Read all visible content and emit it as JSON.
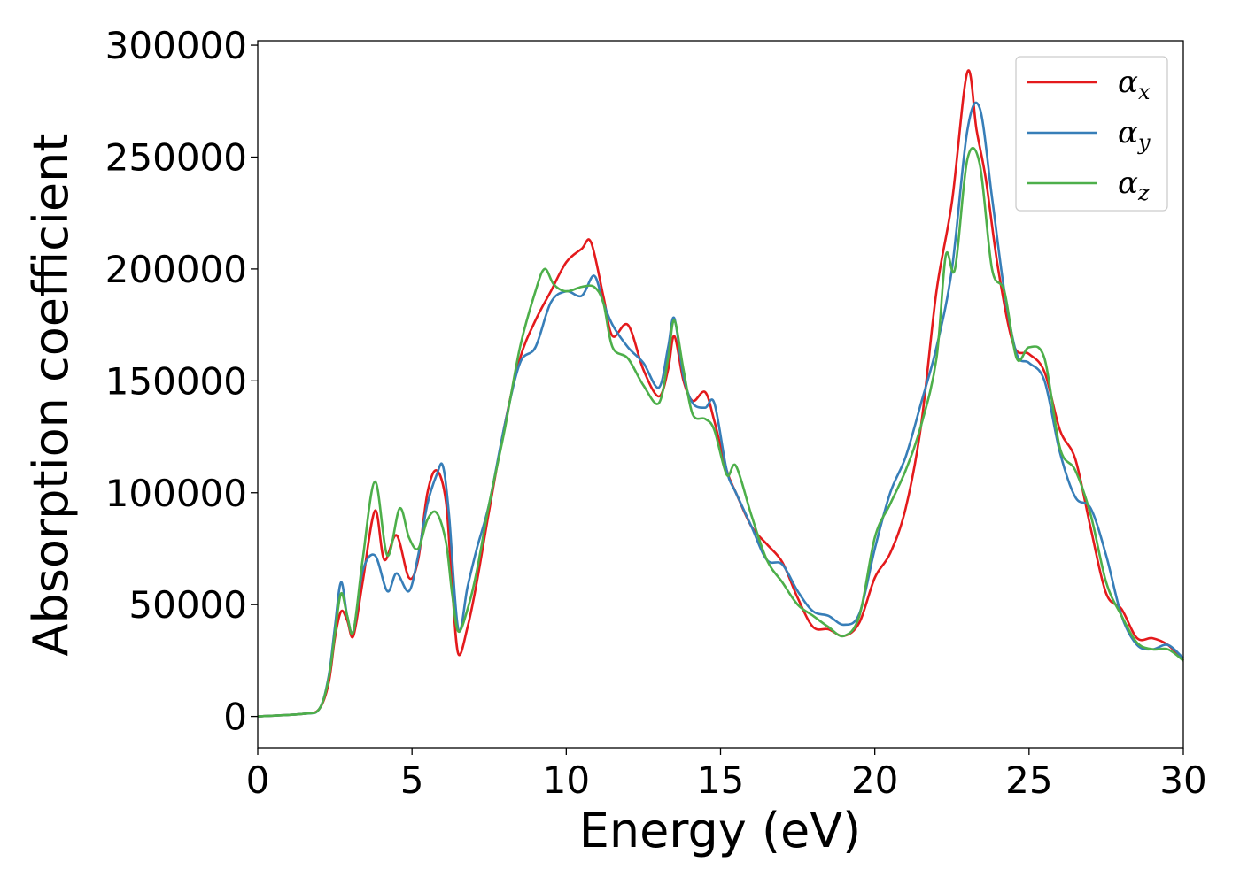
{
  "chart_data": {
    "type": "line",
    "title": "",
    "xlabel": "Energy (eV)",
    "ylabel": "Absorption coefficient",
    "xlim": [
      0,
      30
    ],
    "ylim": [
      -14000,
      302000
    ],
    "xticks": [
      0,
      5,
      10,
      15,
      20,
      25,
      30
    ],
    "xtick_labels": [
      "0",
      "5",
      "10",
      "15",
      "20",
      "25",
      "30"
    ],
    "yticks": [
      0,
      50000,
      100000,
      150000,
      200000,
      250000,
      300000
    ],
    "ytick_labels": [
      "0",
      "50000",
      "100000",
      "150000",
      "200000",
      "250000",
      "300000"
    ],
    "grid": false,
    "legend_position": "upper right",
    "series": [
      {
        "name": "α_x",
        "color": "#e41a1c",
        "x": [
          0,
          1.5,
          2.0,
          2.3,
          2.5,
          2.7,
          2.9,
          3.1,
          3.4,
          3.8,
          4.1,
          4.5,
          4.9,
          5.2,
          5.5,
          5.8,
          6.1,
          6.3,
          6.5,
          6.8,
          7.1,
          7.5,
          8.0,
          8.5,
          9.0,
          9.5,
          10.0,
          10.5,
          10.8,
          11.2,
          11.5,
          12.0,
          12.5,
          13.0,
          13.3,
          13.5,
          13.8,
          14.1,
          14.5,
          14.8,
          15.2,
          15.5,
          16.0,
          16.5,
          17.0,
          17.5,
          18.0,
          18.5,
          19.0,
          19.5,
          20.0,
          20.5,
          21.0,
          21.5,
          22.0,
          22.5,
          23.0,
          23.3,
          23.6,
          24.0,
          24.5,
          25.0,
          25.5,
          26.0,
          26.5,
          27.0,
          27.5,
          28.0,
          28.5,
          29.0,
          29.5,
          30.0
        ],
        "y": [
          0,
          1200,
          3500,
          15000,
          35000,
          47000,
          43000,
          36000,
          60000,
          92000,
          70000,
          81000,
          62000,
          70000,
          100000,
          110000,
          96000,
          58000,
          28000,
          40000,
          60000,
          92000,
          130000,
          160000,
          177000,
          190000,
          203000,
          209000,
          212000,
          188000,
          170000,
          175000,
          155000,
          143000,
          155000,
          170000,
          150000,
          141000,
          145000,
          132000,
          110000,
          100000,
          85000,
          77000,
          69000,
          53000,
          40000,
          39000,
          36000,
          42000,
          62000,
          73000,
          93000,
          130000,
          190000,
          230000,
          288000,
          262000,
          240000,
          200000,
          166000,
          162000,
          154000,
          128000,
          115000,
          84000,
          55000,
          48000,
          35000,
          35000,
          32000,
          25000
        ]
      },
      {
        "name": "α_y",
        "color": "#377eb8",
        "x": [
          0,
          1.5,
          2.0,
          2.3,
          2.5,
          2.7,
          2.9,
          3.1,
          3.4,
          3.8,
          4.2,
          4.5,
          4.9,
          5.2,
          5.5,
          5.8,
          6.0,
          6.2,
          6.5,
          6.8,
          7.1,
          7.5,
          8.0,
          8.5,
          9.0,
          9.5,
          10.0,
          10.5,
          10.9,
          11.2,
          11.5,
          12.0,
          12.5,
          13.0,
          13.3,
          13.5,
          13.8,
          14.1,
          14.5,
          14.8,
          15.2,
          15.5,
          16.0,
          16.5,
          17.0,
          17.5,
          18.0,
          18.5,
          19.0,
          19.5,
          20.0,
          20.5,
          21.0,
          21.5,
          22.0,
          22.5,
          23.0,
          23.4,
          23.8,
          24.2,
          24.6,
          25.0,
          25.5,
          26.0,
          26.5,
          27.0,
          27.5,
          28.0,
          28.5,
          29.0,
          29.5,
          30.0
        ],
        "y": [
          0,
          1200,
          3500,
          18000,
          40000,
          60000,
          45000,
          38000,
          65000,
          72000,
          56000,
          64000,
          56000,
          72000,
          95000,
          108000,
          112000,
          90000,
          39000,
          58000,
          75000,
          95000,
          130000,
          158000,
          165000,
          185000,
          190000,
          188000,
          197000,
          185000,
          175000,
          165000,
          158000,
          147000,
          165000,
          178000,
          152000,
          140000,
          138000,
          140000,
          110000,
          100000,
          85000,
          70000,
          68000,
          56000,
          47000,
          45000,
          41000,
          46000,
          75000,
          100000,
          116000,
          140000,
          165000,
          200000,
          262000,
          272000,
          232000,
          190000,
          162000,
          158000,
          150000,
          118000,
          98000,
          93000,
          72000,
          45000,
          32000,
          30000,
          32000,
          26000
        ]
      },
      {
        "name": "α_z",
        "color": "#4daf4a",
        "x": [
          0,
          1.5,
          2.0,
          2.3,
          2.5,
          2.7,
          2.9,
          3.1,
          3.4,
          3.8,
          4.2,
          4.6,
          4.9,
          5.2,
          5.5,
          5.8,
          6.1,
          6.3,
          6.5,
          6.8,
          7.1,
          7.5,
          8.0,
          8.5,
          9.0,
          9.3,
          9.6,
          10.0,
          10.5,
          10.9,
          11.2,
          11.5,
          12.0,
          12.5,
          13.0,
          13.3,
          13.5,
          13.8,
          14.1,
          14.5,
          14.8,
          15.2,
          15.5,
          16.0,
          16.5,
          17.0,
          17.5,
          18.0,
          18.5,
          19.0,
          19.5,
          20.0,
          20.5,
          21.0,
          21.5,
          22.0,
          22.3,
          22.6,
          23.0,
          23.4,
          23.8,
          24.2,
          24.6,
          25.0,
          25.5,
          26.0,
          26.5,
          27.0,
          27.5,
          28.0,
          28.5,
          29.0,
          29.5,
          30.0
        ],
        "y": [
          0,
          1200,
          3500,
          17000,
          37000,
          55000,
          45000,
          38000,
          70000,
          105000,
          72000,
          93000,
          80000,
          75000,
          88000,
          91000,
          78000,
          55000,
          38000,
          48000,
          65000,
          95000,
          128000,
          165000,
          190000,
          200000,
          193000,
          190000,
          192000,
          192000,
          185000,
          165000,
          160000,
          148000,
          140000,
          160000,
          177000,
          155000,
          135000,
          133000,
          128000,
          108000,
          112000,
          90000,
          70000,
          60000,
          50000,
          45000,
          40000,
          36000,
          45000,
          80000,
          95000,
          110000,
          130000,
          160000,
          206000,
          200000,
          249000,
          247000,
          200000,
          190000,
          160000,
          165000,
          160000,
          120000,
          110000,
          90000,
          60000,
          45000,
          33000,
          30000,
          30000,
          25000
        ]
      }
    ]
  }
}
